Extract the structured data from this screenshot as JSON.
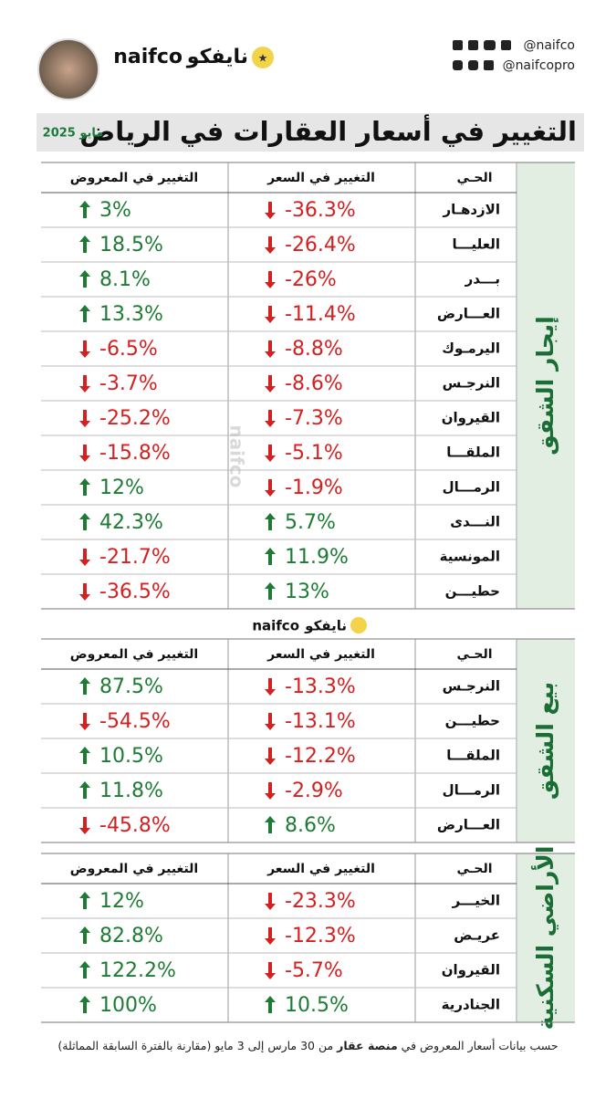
{
  "header": {
    "brand_en": "naifco",
    "brand_ar": "نايفكو",
    "handle_1": "@naifco",
    "handle_2": "@naifcopro",
    "title": "التغيير في أسعار العقارات في الرياض",
    "date": "مايو 2025"
  },
  "sections": [
    {
      "label": "إيجار الشقق",
      "headers": [
        "الحـي",
        "التغيير في السعر",
        "التغيير في المعروض"
      ],
      "rows": [
        [
          "الازدهـار",
          "-36.3%",
          "3%"
        ],
        [
          "العليـــا",
          "-26.4%",
          "18.5%"
        ],
        [
          "بـــدر",
          "-26%",
          "8.1%"
        ],
        [
          "العـــارض",
          "-11.4%",
          "13.3%"
        ],
        [
          "اليرمـوك",
          "-8.8%",
          "-6.5%"
        ],
        [
          "النرجـس",
          "-8.6%",
          "-3.7%"
        ],
        [
          "القيروان",
          "-7.3%",
          "-25.2%"
        ],
        [
          "الملقـــا",
          "-5.1%",
          "-15.8%"
        ],
        [
          "الرمـــال",
          "-1.9%",
          "12%"
        ],
        [
          "النـــدى",
          "5.7%",
          "42.3%"
        ],
        [
          "المونسية",
          "11.9%",
          "-21.7%"
        ],
        [
          "حطيـــن",
          "13%",
          "-36.5%"
        ]
      ]
    },
    {
      "label": "بيع الشقق",
      "headers": [
        "الحـي",
        "التغيير في السعر",
        "التغيير في المعروض"
      ],
      "rows": [
        [
          "النرجـس",
          "-13.3%",
          "87.5%"
        ],
        [
          "حطيـــن",
          "-13.1%",
          "-54.5%"
        ],
        [
          "الملقـــا",
          "-12.2%",
          "10.5%"
        ],
        [
          "الرمـــال",
          "-2.9%",
          "11.8%"
        ],
        [
          "العـــارض",
          "8.6%",
          "-45.8%"
        ]
      ]
    },
    {
      "label": "الأراضي السكنية",
      "headers": [
        "الحـي",
        "التغيير في السعر",
        "التغيير في المعروض"
      ],
      "rows": [
        [
          "الخيـــر",
          "-23.3%",
          "12%"
        ],
        [
          "عريـض",
          "-12.3%",
          "82.8%"
        ],
        [
          "القيروان",
          "-5.7%",
          "122.2%"
        ],
        [
          "الجنادرية",
          "10.5%",
          "100%"
        ]
      ]
    }
  ],
  "footer": {
    "part_1": "حسب بيانات أسعار المعروض في ",
    "part_2": "منصة عقار",
    "part_3": " من 30 مارس إلى 3 مايو (مقارنة بالفترة السابقة المماثلة)"
  }
}
